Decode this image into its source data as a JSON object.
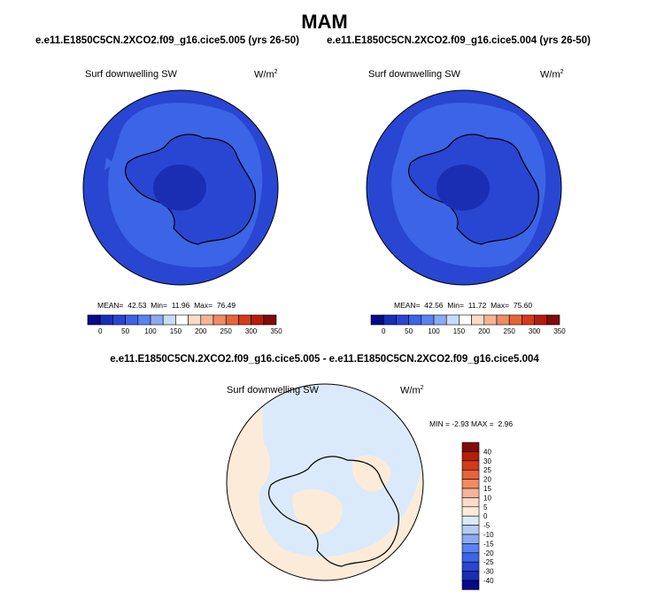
{
  "header": {
    "title": "MAM",
    "left_case": "e.e11.E1850C5CN.2XCO2.f09_g16.cice5.005 (yrs 26-50)",
    "right_case": "e.e11.E1850C5CN.2XCO2.f09_g16.cice5.004 (yrs 26-50)"
  },
  "panels": [
    {
      "variable": "Surf downwelling SW",
      "units": "W/m",
      "units_exp": "2",
      "mean_label": "MEAN=",
      "mean": "42.53",
      "min_label": "Min=",
      "min": "11.96",
      "max_label": "Max=",
      "max": "76.49"
    },
    {
      "variable": "Surf downwelling SW",
      "units": "W/m",
      "units_exp": "2",
      "mean_label": "MEAN=",
      "mean": "42.56",
      "min_label": "Min=",
      "min": "11.72",
      "max_label": "Max=",
      "max": "75.60"
    }
  ],
  "abs_colorbar": {
    "labels": [
      "0",
      "50",
      "100",
      "150",
      "200",
      "250",
      "300",
      "350"
    ],
    "colors": [
      "#08088c",
      "#1a2eb4",
      "#2846d2",
      "#3c64e6",
      "#5a82f0",
      "#8caaf0",
      "#c8dcfa",
      "#ffffff",
      "#fadcc8",
      "#f5b496",
      "#f08c64",
      "#e6643c",
      "#d23c1e",
      "#b41e0a",
      "#820a0a"
    ]
  },
  "difference": {
    "title": "e.e11.E1850C5CN.2XCO2.f09_g16.cice5.005 - e.e11.E1850C5CN.2XCO2.f09_g16.cice5.004",
    "variable": "Surf downwelling SW",
    "units": "W/m",
    "units_exp": "2",
    "min_label": "MIN =",
    "min": "-2.93",
    "max_label": "MAX =",
    "max": "2.96",
    "colorbar_labels": [
      "40",
      "30",
      "25",
      "20",
      "15",
      "10",
      "5",
      "0",
      "-5",
      "-10",
      "-15",
      "-20",
      "-25",
      "-30",
      "-40"
    ],
    "colorbar_colors": [
      "#820a0a",
      "#b41e0a",
      "#d23c1e",
      "#e6643c",
      "#f08c64",
      "#f5b496",
      "#fadcc8",
      "#fdebd9",
      "#dbeafb",
      "#b4cdf5",
      "#8caaf0",
      "#5a82f0",
      "#3c64e6",
      "#2846d2",
      "#1a2eb4",
      "#08088c"
    ]
  },
  "map_colors": {
    "ocean_outer": "#2846d2",
    "ocean_ring": "#3c64e6",
    "continent": "#2846d2",
    "polar_core": "#1a2eb4",
    "diff_positive": "#fdebd9",
    "diff_negative": "#dbeafb"
  }
}
